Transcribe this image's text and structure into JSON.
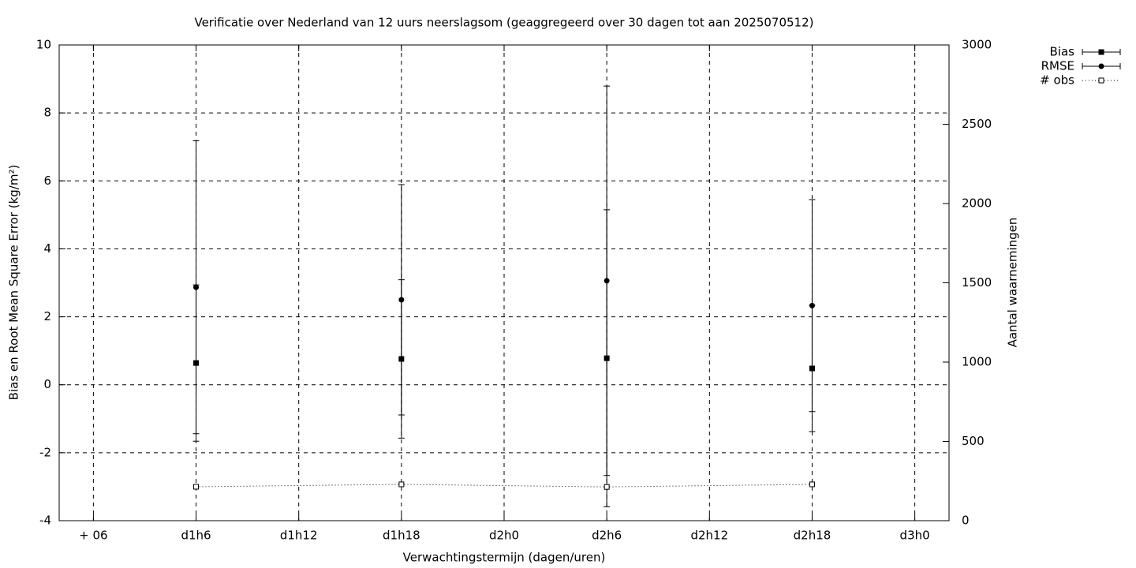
{
  "chart_data": {
    "type": "errorbar",
    "title": "Verificatie over Nederland van 12 uurs neerslagsom (geaggregeerd over 30 dagen tot aan 2025070512)",
    "xlabel": "Verwachtingstermijn (dagen/uren)",
    "ylabel": "Bias en Root Mean Square Error (kg/m²)",
    "y2label": "Aantal waarnemingen",
    "x": [
      30,
      42,
      54,
      66
    ],
    "xlim": [
      22,
      74
    ],
    "xticks": [
      {
        "value": 24,
        "label": "+ 06"
      },
      {
        "value": 30,
        "label": "d1h6"
      },
      {
        "value": 36,
        "label": "d1h12"
      },
      {
        "value": 42,
        "label": "d1h18"
      },
      {
        "value": 48,
        "label": "d2h0"
      },
      {
        "value": 54,
        "label": "d2h6"
      },
      {
        "value": 60,
        "label": "d2h12"
      },
      {
        "value": 66,
        "label": "d2h18"
      },
      {
        "value": 72,
        "label": "d3h0"
      }
    ],
    "ylim": [
      -4,
      10
    ],
    "yticks": [
      -4,
      -2,
      0,
      2,
      4,
      6,
      8,
      10
    ],
    "y2lim": [
      0,
      3000
    ],
    "y2ticks": [
      0,
      500,
      1000,
      1500,
      2000,
      2500,
      3000
    ],
    "grid": true,
    "legend": "outside-top-right",
    "series": [
      {
        "name": "Bias",
        "color": "#000000",
        "marker": "filled-square",
        "values": [
          0.64,
          0.76,
          0.78,
          0.48
        ],
        "errors": [
          2.3,
          2.33,
          4.37,
          1.86
        ]
      },
      {
        "name": "RMSE",
        "color": "#000000",
        "marker": "filled-circle",
        "values": [
          2.87,
          2.5,
          3.06,
          2.33
        ],
        "errors": [
          4.31,
          3.39,
          5.73,
          3.12
        ]
      },
      {
        "name": "# obs",
        "color": "#000000",
        "marker": "open-square",
        "axis": "y2",
        "values": [
          214,
          229,
          213,
          229
        ]
      }
    ]
  }
}
